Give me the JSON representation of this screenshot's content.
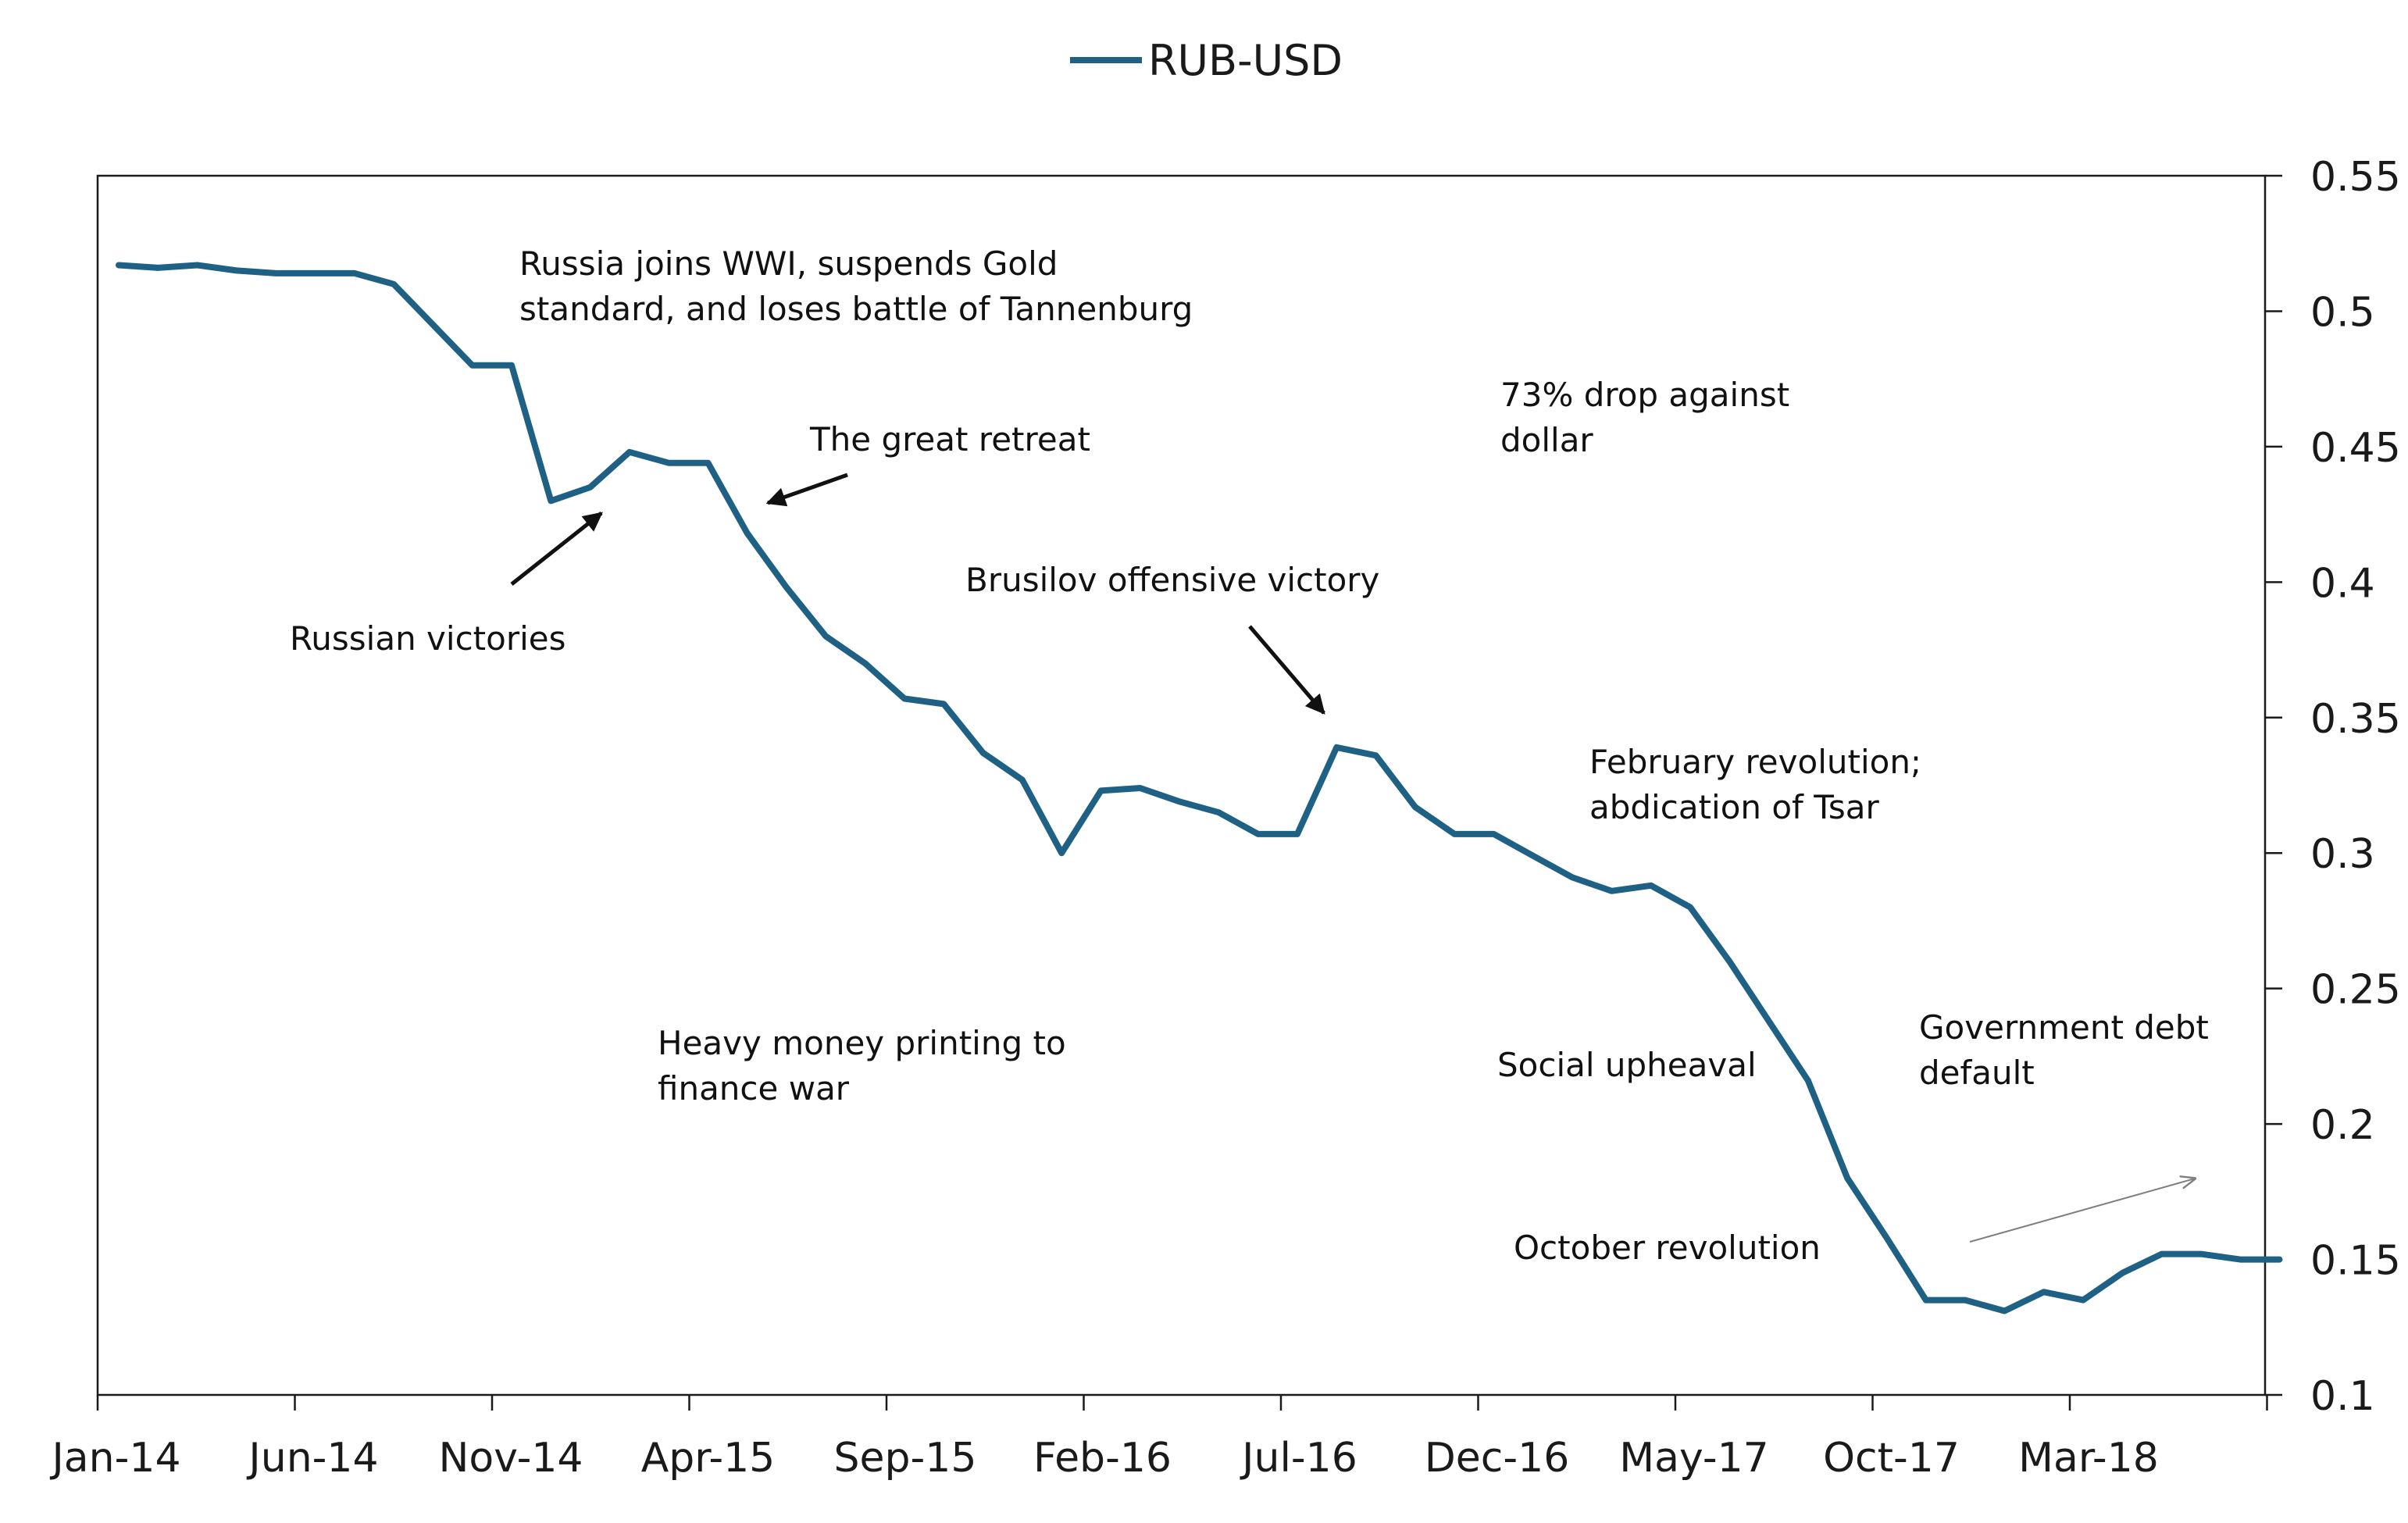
{
  "colors": {
    "series": "#1e6185",
    "axis": "#1a1a1a",
    "arrow": "#111111",
    "trend_arrow": "#7f7f7f"
  },
  "chart_data": {
    "type": "line",
    "title": "",
    "xlabel": "",
    "ylabel": "",
    "ylim": [
      0.1,
      0.55
    ],
    "yticks": [
      0.1,
      0.15,
      0.2,
      0.25,
      0.3,
      0.35,
      0.4,
      0.45,
      0.5,
      0.55
    ],
    "ytick_labels": [
      "0.1",
      "0.15",
      "0.2",
      "0.25",
      "0.3",
      "0.35",
      "0.4",
      "0.45",
      "0.5",
      "0.55"
    ],
    "y_axis_side": "right",
    "xticks": [
      "Jan-14",
      "Jun-14",
      "Nov-14",
      "Apr-15",
      "Sep-15",
      "Feb-16",
      "Jul-16",
      "Dec-16",
      "May-17",
      "Oct-17",
      "Mar-18"
    ],
    "grid": false,
    "legend": {
      "position": "top-center",
      "entries": [
        "RUB-USD"
      ]
    },
    "x": [
      "Jan-14",
      "Feb-14",
      "Mar-14",
      "Apr-14",
      "May-14",
      "Jun-14",
      "Jul-14",
      "Aug-14",
      "Sep-14",
      "Oct-14",
      "Nov-14",
      "Dec-14",
      "Jan-15",
      "Feb-15",
      "Mar-15",
      "Apr-15",
      "May-15",
      "Jun-15",
      "Jul-15",
      "Aug-15",
      "Sep-15",
      "Oct-15",
      "Nov-15",
      "Dec-15",
      "Jan-16",
      "Feb-16",
      "Mar-16",
      "Apr-16",
      "May-16",
      "Jun-16",
      "Jul-16",
      "Aug-16",
      "Sep-16",
      "Oct-16",
      "Nov-16",
      "Dec-16",
      "Jan-17",
      "Feb-17",
      "Mar-17",
      "Apr-17",
      "May-17",
      "Jun-17",
      "Jul-17",
      "Aug-17",
      "Sep-17",
      "Oct-17",
      "Nov-17",
      "Dec-17",
      "Jan-18",
      "Feb-18",
      "Mar-18",
      "Apr-18",
      "May-18",
      "Jun-18",
      "Jul-18",
      "Aug-18"
    ],
    "series": [
      {
        "name": "RUB-USD",
        "values": [
          0.517,
          0.516,
          0.517,
          0.515,
          0.514,
          0.514,
          0.514,
          0.51,
          0.495,
          0.48,
          0.48,
          0.43,
          0.435,
          0.448,
          0.444,
          0.444,
          0.418,
          0.398,
          0.38,
          0.37,
          0.357,
          0.355,
          0.337,
          0.327,
          0.3,
          0.323,
          0.324,
          0.319,
          0.315,
          0.307,
          0.307,
          0.339,
          0.336,
          0.317,
          0.307,
          0.307,
          0.299,
          0.291,
          0.286,
          0.288,
          0.28,
          0.26,
          0.238,
          0.216,
          0.18,
          0.158,
          0.135,
          0.135,
          0.131,
          0.138,
          0.135,
          0.145,
          0.152,
          0.152,
          0.15,
          0.15
        ]
      }
    ],
    "annotations": [
      {
        "id": "wwi",
        "lines": [
          "Russia joins WWI, suspends Gold",
          "standard, and loses battle of Tannenburg"
        ]
      },
      {
        "id": "retreat",
        "lines": [
          "The great retreat"
        ]
      },
      {
        "id": "victories",
        "lines": [
          "Russian victories"
        ]
      },
      {
        "id": "drop",
        "lines": [
          "73% drop against",
          "dollar"
        ]
      },
      {
        "id": "brusilov",
        "lines": [
          "Brusilov offensive victory"
        ]
      },
      {
        "id": "february",
        "lines": [
          "February revolution;",
          "abdication of Tsar"
        ]
      },
      {
        "id": "printing",
        "lines": [
          "Heavy money printing to",
          "finance war"
        ]
      },
      {
        "id": "social",
        "lines": [
          "Social upheaval"
        ]
      },
      {
        "id": "default",
        "lines": [
          "Government debt",
          "default"
        ]
      },
      {
        "id": "october",
        "lines": [
          "October revolution"
        ]
      }
    ]
  }
}
